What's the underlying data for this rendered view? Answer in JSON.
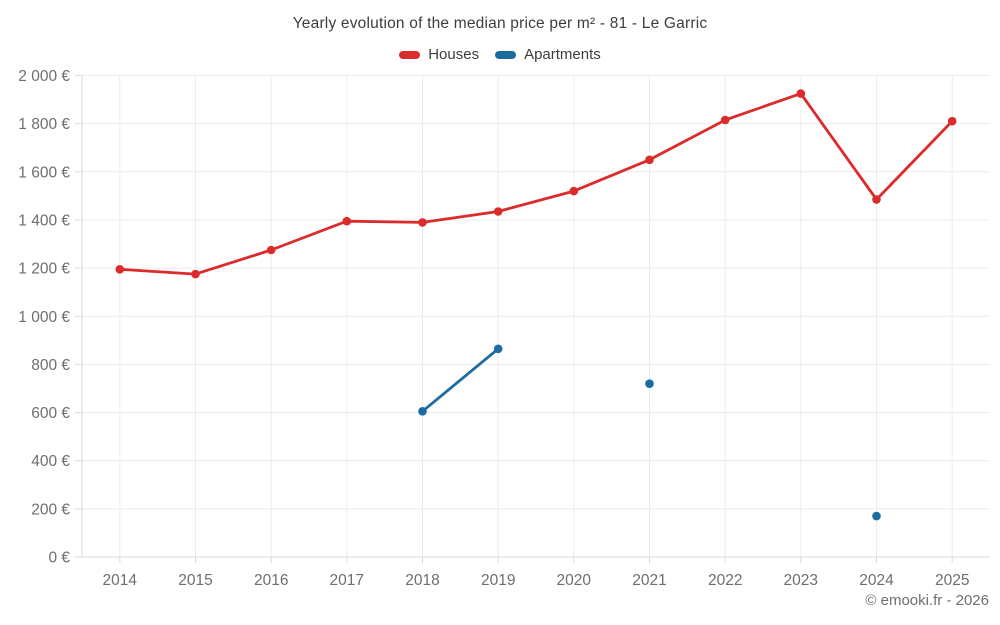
{
  "header": {
    "title": "Yearly evolution of the median price per m² - 81 - Le Garric"
  },
  "legend": [
    {
      "label": "Houses",
      "color": "#dc2b2b"
    },
    {
      "label": "Apartments",
      "color": "#1a6d9e"
    }
  ],
  "footer": {
    "copyright": "© emooki.fr - 2026"
  },
  "chart_data": {
    "type": "line",
    "title": "Yearly evolution of the median price per m² - 81 - Le Garric",
    "x": [
      "2014",
      "2015",
      "2016",
      "2017",
      "2018",
      "2019",
      "2020",
      "2021",
      "2022",
      "2023",
      "2024",
      "2025"
    ],
    "series": [
      {
        "name": "Houses",
        "color": "#dc2b2b",
        "values": [
          1195,
          1175,
          1275,
          1395,
          1390,
          1435,
          1520,
          1650,
          1815,
          1925,
          1485,
          1810
        ]
      },
      {
        "name": "Apartments",
        "color": "#1a6d9e",
        "values": [
          null,
          null,
          null,
          null,
          605,
          865,
          null,
          720,
          null,
          null,
          170,
          null
        ]
      }
    ],
    "xlabel": "",
    "ylabel": "",
    "ylim": [
      0,
      2000
    ],
    "ytick_labels": [
      "0 €",
      "200 €",
      "400 €",
      "600 €",
      "800 €",
      "1 000 €",
      "1 200 €",
      "1 400 €",
      "1 600 €",
      "1 800 €",
      "2 000 €"
    ],
    "grid": true,
    "legend_position": "top"
  }
}
